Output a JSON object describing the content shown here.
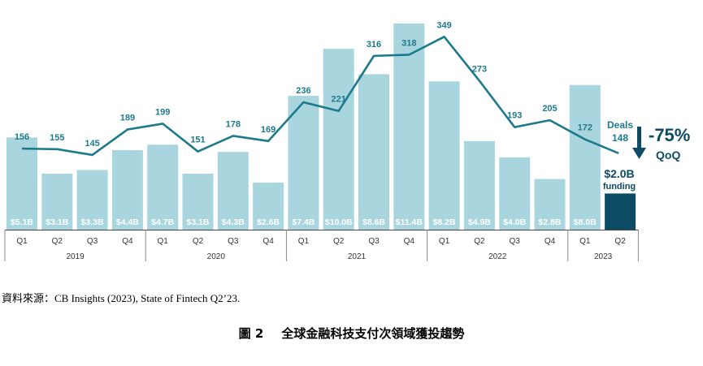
{
  "chart_data": {
    "type": "bar",
    "categories": [
      "Q1",
      "Q2",
      "Q3",
      "Q4",
      "Q1",
      "Q2",
      "Q3",
      "Q4",
      "Q1",
      "Q2",
      "Q3",
      "Q4",
      "Q1",
      "Q2",
      "Q3",
      "Q4",
      "Q1",
      "Q2"
    ],
    "years": [
      {
        "label": "2019",
        "quarters": 4
      },
      {
        "label": "2020",
        "quarters": 4
      },
      {
        "label": "2021",
        "quarters": 4
      },
      {
        "label": "2022",
        "quarters": 4
      },
      {
        "label": "2023",
        "quarters": 2
      }
    ],
    "series": [
      {
        "kind": "bar",
        "values": [
          5.1,
          3.1,
          3.3,
          4.4,
          4.7,
          3.1,
          4.3,
          2.6,
          7.4,
          10.0,
          8.6,
          11.4,
          8.2,
          4.9,
          4.0,
          2.8,
          8.0,
          2.0
        ],
        "labels": [
          "$5.1B",
          "$3.1B",
          "$3.3B",
          "$4.4B",
          "$4.7B",
          "$3.1B",
          "$4.3B",
          "$2.6B",
          "$7.4B",
          "$10.0B",
          "$8.6B",
          "$11.4B",
          "$8.2B",
          "$4.9B",
          "$4.0B",
          "$2.8B",
          "$8.0B",
          "$2.0B"
        ]
      },
      {
        "kind": "line",
        "values": [
          156,
          155,
          145,
          189,
          199,
          151,
          178,
          169,
          236,
          221,
          316,
          318,
          349,
          273,
          193,
          205,
          172,
          148
        ]
      }
    ],
    "bar_color": "#a8d5de",
    "highlight_bar_color": "#0d4a63",
    "line_color": "#1d7a8c",
    "annotations": {
      "deals_label": "Deals",
      "deals_value": "148",
      "funding_value": "$2.0B",
      "funding_label": "funding",
      "change_pct": "-75%",
      "change_period": "QoQ"
    }
  },
  "source_text": "資料來源：CB Insights (2023), State of Fintech Q2’23.",
  "figure": {
    "label": "圖 2",
    "title": "全球金融科技支付次領域獲投趨勢"
  }
}
